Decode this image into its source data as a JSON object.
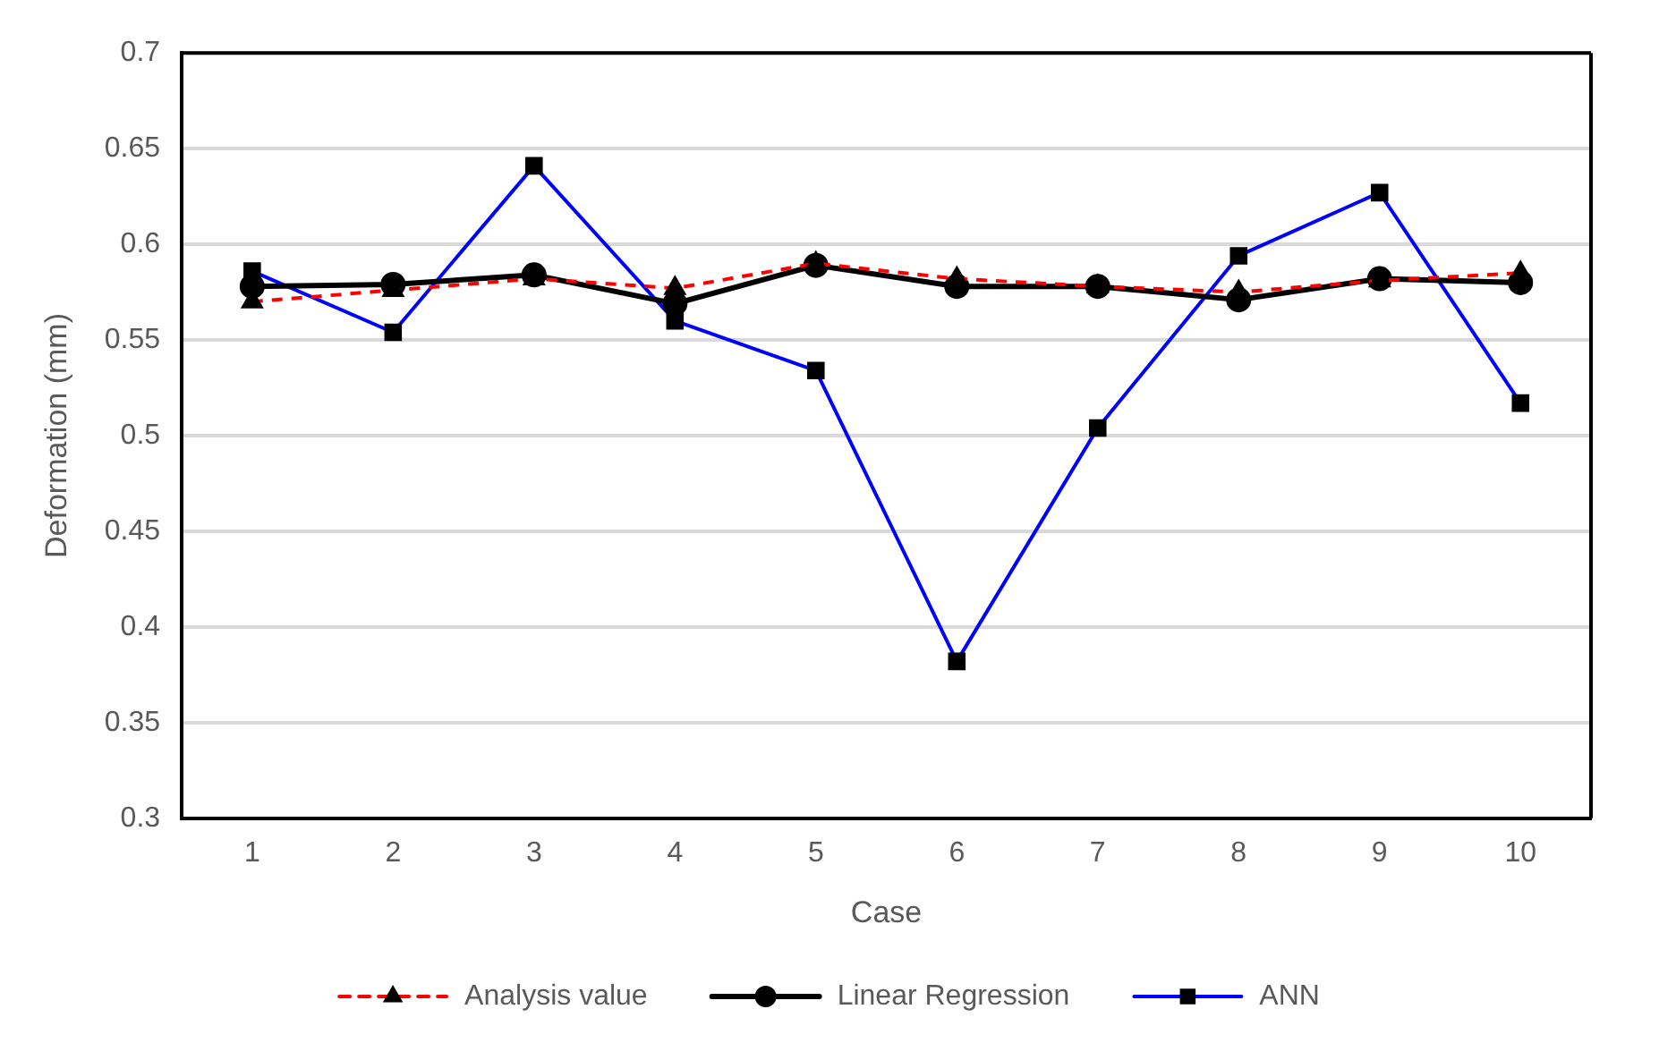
{
  "chart_data": {
    "type": "line",
    "xlabel": "Case",
    "ylabel": "Deformation (mm)",
    "categories": [
      "1",
      "2",
      "3",
      "4",
      "5",
      "6",
      "7",
      "8",
      "9",
      "10"
    ],
    "series": [
      {
        "name": "Analysis value",
        "color": "#ff0000",
        "marker": "triangle",
        "line_style": "dashed",
        "values": [
          0.57,
          0.576,
          0.582,
          0.577,
          0.59,
          0.582,
          0.578,
          0.575,
          0.581,
          0.585
        ]
      },
      {
        "name": "Linear Regression",
        "color": "#000000",
        "marker": "circle",
        "line_style": "solid",
        "values": [
          0.578,
          0.579,
          0.584,
          0.569,
          0.589,
          0.578,
          0.578,
          0.571,
          0.582,
          0.58
        ]
      },
      {
        "name": "ANN",
        "color": "#0000ff",
        "marker": "square",
        "line_style": "solid",
        "values": [
          0.586,
          0.554,
          0.641,
          0.56,
          0.534,
          0.382,
          0.504,
          0.594,
          0.627,
          0.517
        ]
      }
    ],
    "ylim": [
      0.3,
      0.7
    ],
    "yticks": [
      0.3,
      0.35,
      0.4,
      0.45,
      0.5,
      0.55,
      0.6,
      0.65,
      0.7
    ],
    "grid": "y",
    "legend": "bottom"
  }
}
